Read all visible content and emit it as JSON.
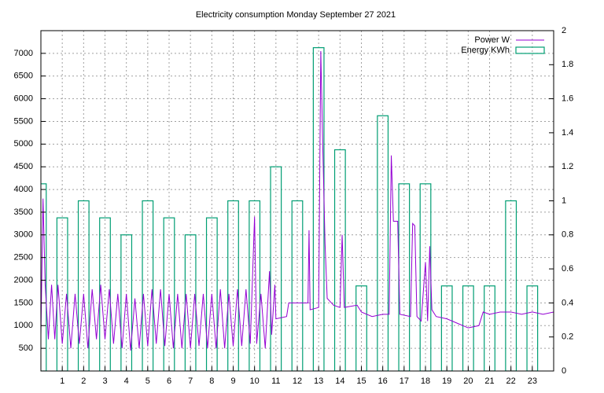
{
  "chart_data": {
    "type": "line-boxes",
    "title": "Electricity consumption Monday September 27 2021",
    "xlim": [
      0,
      24
    ],
    "xticks": [
      1,
      2,
      3,
      4,
      5,
      6,
      7,
      8,
      9,
      10,
      11,
      12,
      13,
      14,
      15,
      16,
      17,
      18,
      19,
      20,
      21,
      22,
      23
    ],
    "ylim": [
      0,
      7500
    ],
    "yticks": [
      500,
      1000,
      1500,
      2000,
      2500,
      3000,
      3500,
      4000,
      4500,
      5000,
      5500,
      6000,
      6500,
      7000
    ],
    "y2lim": [
      0,
      2
    ],
    "y2ticks": [
      0,
      0.2,
      0.4,
      0.6,
      0.8,
      1,
      1.2,
      1.4,
      1.6,
      1.8,
      2
    ],
    "grid": true,
    "legend": "top-right",
    "series": [
      {
        "name": "Power W",
        "color": "#9400d3",
        "type": "line",
        "x": [
          0,
          0.1,
          0.2,
          0.35,
          0.5,
          0.65,
          0.8,
          1.0,
          1.2,
          1.4,
          1.6,
          1.8,
          2.0,
          2.2,
          2.4,
          2.6,
          2.8,
          3.0,
          3.2,
          3.4,
          3.6,
          3.8,
          4.0,
          4.2,
          4.4,
          4.6,
          4.8,
          5.0,
          5.2,
          5.4,
          5.6,
          5.8,
          6.0,
          6.2,
          6.4,
          6.6,
          6.8,
          7.0,
          7.2,
          7.4,
          7.6,
          7.8,
          8.0,
          8.2,
          8.4,
          8.6,
          8.8,
          9.0,
          9.2,
          9.4,
          9.6,
          9.8,
          10.0,
          10.1,
          10.3,
          10.5,
          10.7,
          10.8,
          10.95,
          11.0,
          11.5,
          11.6,
          12.0,
          12.5,
          12.55,
          12.6,
          13.0,
          13.1,
          13.2,
          13.3,
          13.4,
          13.7,
          14.0,
          14.1,
          14.2,
          14.8,
          15.0,
          15.5,
          16.0,
          16.3,
          16.4,
          16.5,
          16.7,
          16.8,
          17.3,
          17.4,
          17.5,
          17.6,
          17.8,
          18.0,
          18.1,
          18.2,
          18.3,
          18.5,
          19.0,
          19.5,
          20.0,
          20.5,
          20.7,
          21.0,
          21.5,
          22.0,
          22.5,
          23.0,
          23.5,
          24.0
        ],
        "values": [
          800,
          3800,
          1900,
          700,
          1900,
          700,
          1900,
          600,
          1700,
          500,
          1700,
          600,
          1700,
          500,
          1800,
          700,
          1900,
          700,
          1800,
          600,
          1700,
          500,
          1700,
          450,
          1600,
          500,
          1700,
          550,
          1800,
          600,
          1800,
          550,
          1700,
          500,
          1700,
          500,
          1700,
          500,
          1700,
          550,
          1700,
          500,
          1700,
          500,
          1800,
          500,
          1700,
          550,
          1800,
          550,
          1800,
          600,
          3400,
          600,
          1700,
          500,
          2200,
          800,
          1900,
          1150,
          1200,
          1500,
          1500,
          1500,
          3100,
          1350,
          1400,
          7050,
          4800,
          2800,
          1600,
          1450,
          1400,
          3000,
          1400,
          1450,
          1300,
          1200,
          1250,
          1250,
          4750,
          3300,
          3300,
          1250,
          1200,
          3250,
          3200,
          1200,
          1100,
          2400,
          1100,
          2750,
          1350,
          1200,
          1150,
          1050,
          950,
          1000,
          1300,
          1250,
          1300,
          1300,
          1250,
          1300,
          1250,
          1300
        ]
      },
      {
        "name": "Energy KWh",
        "color": "#009e73",
        "type": "boxes",
        "axis": "y2",
        "x": [
          0,
          1,
          2,
          3,
          4,
          5,
          6,
          7,
          8,
          9,
          10,
          11,
          12,
          13,
          14,
          15,
          16,
          17,
          18,
          19,
          20,
          21,
          22,
          23
        ],
        "values": [
          1.1,
          0.9,
          1.0,
          0.9,
          0.8,
          1.0,
          0.9,
          0.8,
          0.9,
          1.0,
          1.0,
          1.2,
          1.0,
          1.9,
          1.3,
          0.5,
          1.5,
          1.1,
          1.1,
          0.5,
          0.5,
          0.5,
          1.0,
          0.5
        ]
      }
    ]
  }
}
